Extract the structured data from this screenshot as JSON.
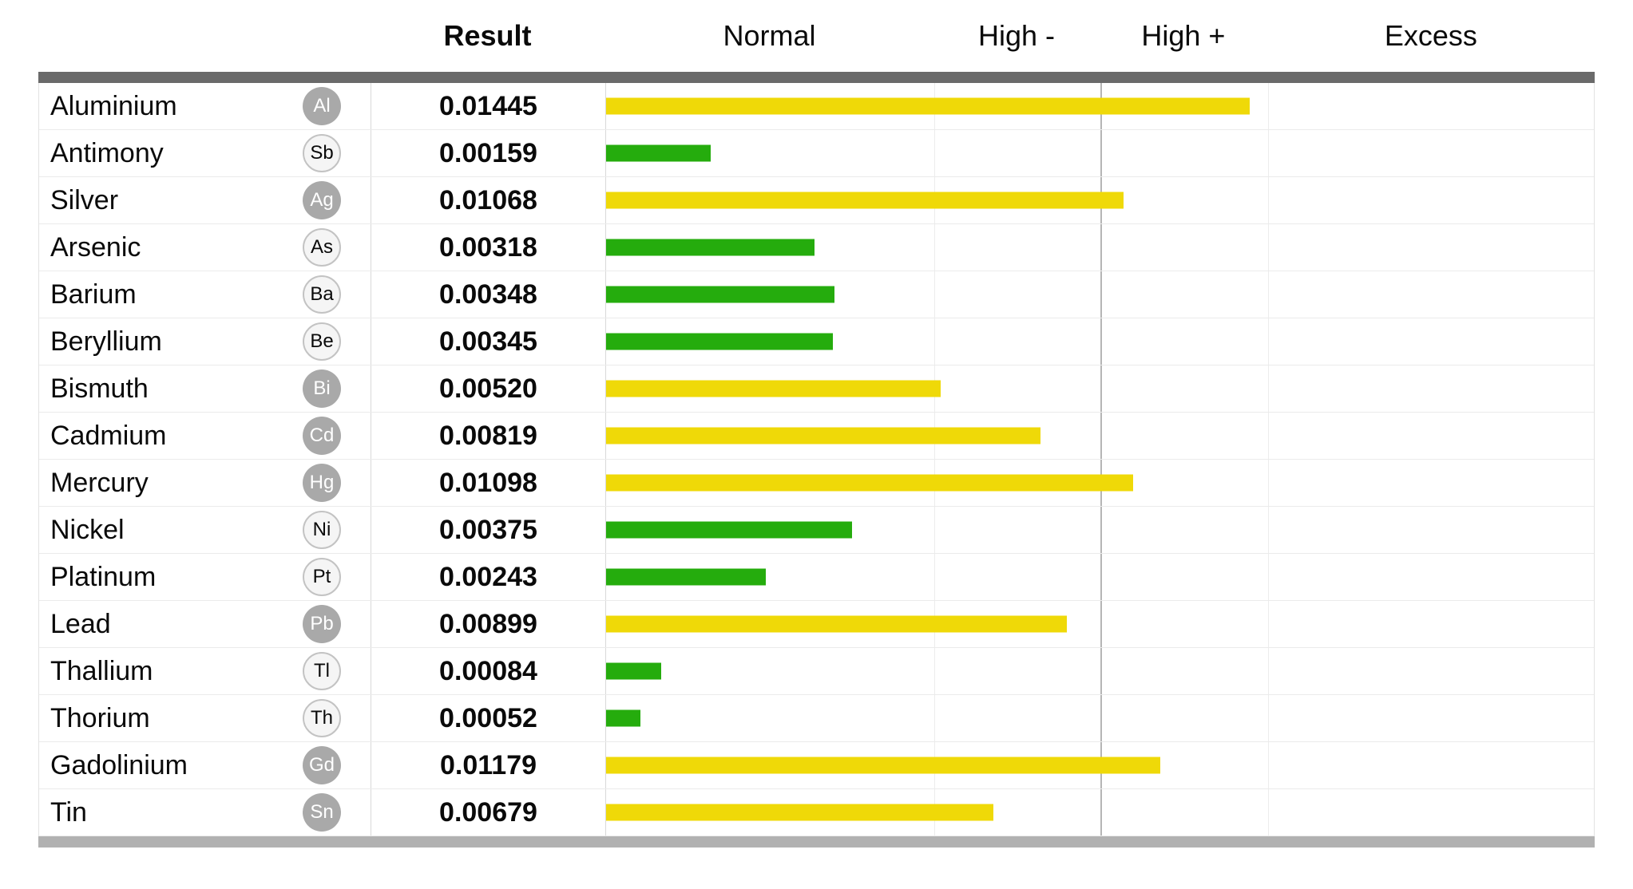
{
  "header": {
    "result_label": "Result",
    "zone_labels": [
      "Normal",
      "High -",
      "High +",
      "Excess"
    ]
  },
  "rows": [
    {
      "name": "Aluminium",
      "symbol": "Al",
      "result": "0.01445",
      "value": 0.01445,
      "status": "high_plus",
      "bar_color": "yellow",
      "symbol_style": "filled"
    },
    {
      "name": "Antimony",
      "symbol": "Sb",
      "result": "0.00159",
      "value": 0.00159,
      "status": "normal",
      "bar_color": "green",
      "symbol_style": "outline"
    },
    {
      "name": "Silver",
      "symbol": "Ag",
      "result": "0.01068",
      "value": 0.01068,
      "status": "high_plus",
      "bar_color": "yellow",
      "symbol_style": "filled"
    },
    {
      "name": "Arsenic",
      "symbol": "As",
      "result": "0.00318",
      "value": 0.00318,
      "status": "normal",
      "bar_color": "green",
      "symbol_style": "outline"
    },
    {
      "name": "Barium",
      "symbol": "Ba",
      "result": "0.00348",
      "value": 0.00348,
      "status": "normal",
      "bar_color": "green",
      "symbol_style": "outline"
    },
    {
      "name": "Beryllium",
      "symbol": "Be",
      "result": "0.00345",
      "value": 0.00345,
      "status": "normal",
      "bar_color": "green",
      "symbol_style": "outline"
    },
    {
      "name": "Bismuth",
      "symbol": "Bi",
      "result": "0.00520",
      "value": 0.0052,
      "status": "high_minus",
      "bar_color": "yellow",
      "symbol_style": "filled"
    },
    {
      "name": "Cadmium",
      "symbol": "Cd",
      "result": "0.00819",
      "value": 0.00819,
      "status": "high_minus",
      "bar_color": "yellow",
      "symbol_style": "filled"
    },
    {
      "name": "Mercury",
      "symbol": "Hg",
      "result": "0.01098",
      "value": 0.01098,
      "status": "high_plus",
      "bar_color": "yellow",
      "symbol_style": "filled"
    },
    {
      "name": "Nickel",
      "symbol": "Ni",
      "result": "0.00375",
      "value": 0.00375,
      "status": "normal",
      "bar_color": "green",
      "symbol_style": "outline"
    },
    {
      "name": "Platinum",
      "symbol": "Pt",
      "result": "0.00243",
      "value": 0.00243,
      "status": "normal",
      "bar_color": "green",
      "symbol_style": "outline"
    },
    {
      "name": "Lead",
      "symbol": "Pb",
      "result": "0.00899",
      "value": 0.00899,
      "status": "high_minus",
      "bar_color": "yellow",
      "symbol_style": "filled"
    },
    {
      "name": "Thallium",
      "symbol": "Tl",
      "result": "0.00084",
      "value": 0.00084,
      "status": "normal",
      "bar_color": "green",
      "symbol_style": "outline"
    },
    {
      "name": "Thorium",
      "symbol": "Th",
      "result": "0.00052",
      "value": 0.00052,
      "status": "normal",
      "bar_color": "green",
      "symbol_style": "outline"
    },
    {
      "name": "Gadolinium",
      "symbol": "Gd",
      "result": "0.01179",
      "value": 0.01179,
      "status": "high_plus",
      "bar_color": "yellow",
      "symbol_style": "filled"
    },
    {
      "name": "Tin",
      "symbol": "Sn",
      "result": "0.00679",
      "value": 0.00679,
      "status": "high_minus",
      "bar_color": "yellow",
      "symbol_style": "filled"
    }
  ],
  "scale": {
    "breaks": [
      0,
      0.005,
      0.01,
      0.015,
      0.02
    ],
    "fracs": [
      0,
      0.3317,
      0.4996,
      0.669,
      1
    ]
  },
  "colors": {
    "bar_green": "#25ac0d",
    "bar_yellow": "#efd908",
    "top_divider": "#6a6a6a",
    "bottom_divider": "#b1b1b1",
    "symbol_filled_bg": "#a9a9a9",
    "symbol_filled_text": "#ffffff",
    "symbol_outline_bg": "#f5f5f5",
    "symbol_outline_border": "#c3c3c3"
  },
  "chart_data": {
    "type": "bar",
    "orientation": "horizontal",
    "title": "",
    "categories": [
      "Aluminium",
      "Antimony",
      "Silver",
      "Arsenic",
      "Barium",
      "Beryllium",
      "Bismuth",
      "Cadmium",
      "Mercury",
      "Nickel",
      "Platinum",
      "Lead",
      "Thallium",
      "Thorium",
      "Gadolinium",
      "Tin"
    ],
    "symbols": [
      "Al",
      "Sb",
      "Ag",
      "As",
      "Ba",
      "Be",
      "Bi",
      "Cd",
      "Hg",
      "Ni",
      "Pt",
      "Pb",
      "Tl",
      "Th",
      "Gd",
      "Sn"
    ],
    "values": [
      0.01445,
      0.00159,
      0.01068,
      0.00318,
      0.00348,
      0.00345,
      0.0052,
      0.00819,
      0.01098,
      0.00375,
      0.00243,
      0.00899,
      0.00084,
      0.00052,
      0.01179,
      0.00679
    ],
    "bar_colors": [
      "yellow",
      "green",
      "yellow",
      "green",
      "green",
      "green",
      "yellow",
      "yellow",
      "yellow",
      "green",
      "green",
      "yellow",
      "green",
      "green",
      "yellow",
      "yellow"
    ],
    "column_headers": [
      "Result",
      "Normal",
      "High -",
      "High +",
      "Excess"
    ],
    "zones": [
      {
        "label": "Normal",
        "range": [
          0,
          0.005
        ]
      },
      {
        "label": "High -",
        "range": [
          0.005,
          0.01
        ]
      },
      {
        "label": "High +",
        "range": [
          0.01,
          0.015
        ]
      },
      {
        "label": "Excess",
        "range": [
          0.015,
          0.02
        ]
      }
    ],
    "axis_note": "piecewise x-scale: Normal band 0-33.2% of track, High- 33.2-50%, High+ 50-66.9%, Excess 66.9-100%",
    "grid": "vertical zone-boundary lines, boundary at 0.010 emphasized",
    "legend_position": "none"
  }
}
